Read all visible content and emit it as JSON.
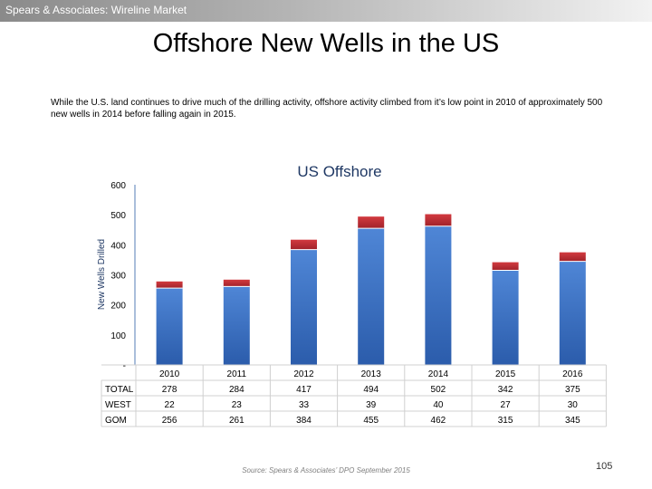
{
  "header": {
    "text": "Spears & Associates: Wireline Market"
  },
  "page": {
    "title": "Offshore New Wells in the US",
    "intro": "While the U.S. land continues to drive much of the drilling activity, offshore activity climbed from it’s low point in 2010 of approximately 500 new wells in 2014 before falling again in 2015.",
    "source": "Source: Spears & Associates’ DPO September 2015",
    "page_number": "105"
  },
  "chart_data": {
    "type": "bar",
    "stacked": true,
    "title": "US Offshore",
    "xlabel": "",
    "ylabel": "New Wells Drilled",
    "ylim": [
      0,
      600
    ],
    "yticks": [
      0,
      100,
      200,
      300,
      400,
      500,
      600
    ],
    "ytick_labels": [
      "-",
      "100",
      "200",
      "300",
      "400",
      "500",
      "600"
    ],
    "categories": [
      "2010",
      "2011",
      "2012",
      "2013",
      "2014",
      "2015",
      "2016"
    ],
    "series": [
      {
        "name": "GOM",
        "values": [
          256,
          261,
          384,
          455,
          462,
          315,
          345
        ],
        "color": "#3a6fc4"
      },
      {
        "name": "WEST",
        "values": [
          22,
          23,
          33,
          39,
          40,
          27,
          30
        ],
        "color": "#b8282e"
      }
    ],
    "table": {
      "rows": [
        {
          "label": "TOTAL",
          "values": [
            "278",
            "284",
            "417",
            "494",
            "502",
            "342",
            "375"
          ]
        },
        {
          "label": "WEST",
          "values": [
            "22",
            "23",
            "33",
            "39",
            "40",
            "27",
            "30"
          ]
        },
        {
          "label": "GOM",
          "values": [
            "256",
            "261",
            "384",
            "455",
            "462",
            "315",
            "345"
          ]
        }
      ]
    }
  }
}
